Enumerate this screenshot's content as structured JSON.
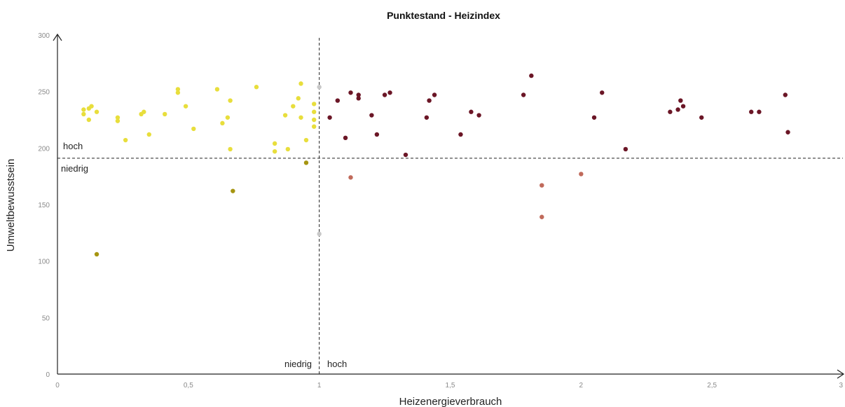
{
  "chart_data": {
    "type": "scatter",
    "title": "Punktestand - Heizindex",
    "xlabel": "Heizenergieverbrauch",
    "ylabel": "Umweltbewusstsein",
    "xlim": [
      0,
      3
    ],
    "ylim": [
      0,
      300
    ],
    "x_ticks": [
      "0",
      "0,5",
      "1",
      "1,5",
      "2",
      "2,5",
      "3"
    ],
    "y_ticks": [
      "0",
      "50",
      "100",
      "150",
      "200",
      "250",
      "300"
    ],
    "grid": false,
    "threshold_x": 1,
    "threshold_y": 191,
    "quadrant_labels": {
      "y_high": "hoch",
      "y_low": "niedrig",
      "x_low": "niedrig",
      "x_high": "hoch"
    },
    "colors": {
      "yellow": "#e8de3c",
      "olive": "#a69511",
      "maroon": "#6b1626",
      "rose": "#c06a5b",
      "grey": "#c8c8c8"
    },
    "series": [
      {
        "color": "#e8de3c",
        "points": [
          [
            0.1,
            234
          ],
          [
            0.1,
            230
          ],
          [
            0.12,
            235
          ],
          [
            0.12,
            225
          ],
          [
            0.13,
            237
          ],
          [
            0.15,
            232
          ],
          [
            0.23,
            227
          ],
          [
            0.23,
            224
          ],
          [
            0.26,
            207
          ],
          [
            0.32,
            230
          ],
          [
            0.33,
            232
          ],
          [
            0.35,
            212
          ],
          [
            0.41,
            230
          ],
          [
            0.46,
            252
          ],
          [
            0.46,
            249
          ],
          [
            0.49,
            237
          ],
          [
            0.52,
            217
          ],
          [
            0.61,
            252
          ],
          [
            0.63,
            222
          ],
          [
            0.65,
            227
          ],
          [
            0.66,
            242
          ],
          [
            0.66,
            199
          ],
          [
            0.76,
            254
          ],
          [
            0.83,
            204
          ],
          [
            0.83,
            197
          ],
          [
            0.87,
            229
          ],
          [
            0.88,
            199
          ],
          [
            0.9,
            237
          ],
          [
            0.92,
            244
          ],
          [
            0.93,
            257
          ],
          [
            0.93,
            227
          ],
          [
            0.95,
            207
          ],
          [
            0.98,
            239
          ],
          [
            0.98,
            232
          ],
          [
            0.98,
            225
          ],
          [
            0.98,
            219
          ]
        ]
      },
      {
        "color": "#a69511",
        "points": [
          [
            0.15,
            106
          ],
          [
            0.67,
            162
          ],
          [
            0.95,
            187
          ]
        ]
      },
      {
        "color": "#6b1626",
        "points": [
          [
            1.04,
            227
          ],
          [
            1.07,
            242
          ],
          [
            1.1,
            209
          ],
          [
            1.12,
            249
          ],
          [
            1.15,
            247
          ],
          [
            1.15,
            244
          ],
          [
            1.2,
            229
          ],
          [
            1.22,
            212
          ],
          [
            1.25,
            247
          ],
          [
            1.27,
            249
          ],
          [
            1.33,
            194
          ],
          [
            1.41,
            227
          ],
          [
            1.42,
            242
          ],
          [
            1.44,
            247
          ],
          [
            1.54,
            212
          ],
          [
            1.58,
            232
          ],
          [
            1.61,
            229
          ],
          [
            1.78,
            247
          ],
          [
            1.81,
            264
          ],
          [
            2.05,
            227
          ],
          [
            2.08,
            249
          ],
          [
            2.17,
            199
          ],
          [
            2.34,
            232
          ],
          [
            2.37,
            234
          ],
          [
            2.38,
            242
          ],
          [
            2.39,
            237
          ],
          [
            2.46,
            227
          ],
          [
            2.65,
            232
          ],
          [
            2.68,
            232
          ],
          [
            2.78,
            247
          ],
          [
            2.79,
            214
          ]
        ]
      },
      {
        "color": "#c06a5b",
        "points": [
          [
            1.12,
            174
          ],
          [
            1.85,
            167
          ],
          [
            1.85,
            139
          ],
          [
            2.0,
            177
          ]
        ]
      },
      {
        "color": "#c8c8c8",
        "points": [
          [
            1.0,
            254
          ],
          [
            1.0,
            124
          ]
        ]
      }
    ]
  }
}
